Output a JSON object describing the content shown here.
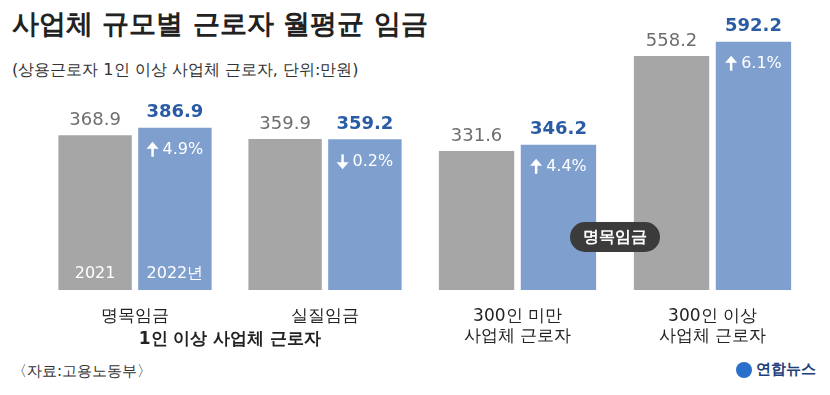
{
  "title": "사업체 규모별 근로자 월평균 임금",
  "subtitle": "(상용근로자 1인 이상 사업체 근로자, 단위:만원)",
  "source": "〈자료:고용노동부〉",
  "credit": "연합뉴스",
  "chart_data": [
    {
      "type": "bar",
      "categories": [
        "명목임금",
        "실질임금"
      ],
      "x_label": "1인 이상 사업체 근로자",
      "series": [
        {
          "name": "2021",
          "color": "#a6a6a6",
          "values": [
            368.9,
            359.9
          ]
        },
        {
          "name": "2022년",
          "color": "#7f9fcf",
          "values": [
            386.9,
            359.2
          ],
          "changes": [
            4.9,
            -0.2
          ],
          "change_labels": [
            "4.9%",
            "0.2%"
          ]
        }
      ],
      "ylim": [
        0,
        620
      ],
      "grid": false,
      "data_labels": true,
      "tick_labels": "x"
    },
    {
      "type": "bar",
      "categories": [
        "300인 미만\n사업체 근로자",
        "300인 이상\n사업체 근로자"
      ],
      "annotation": "명목임금",
      "series": [
        {
          "color": "#a6a6a6",
          "values": [
            331.6,
            558.2
          ]
        },
        {
          "color": "#7f9fcf",
          "values": [
            346.2,
            592.2
          ],
          "changes": [
            4.4,
            6.1
          ],
          "change_labels": [
            "4.4%",
            "6.1%"
          ]
        }
      ],
      "ylim": [
        0,
        620
      ],
      "grid": false,
      "data_labels": true,
      "tick_labels": "x"
    }
  ]
}
